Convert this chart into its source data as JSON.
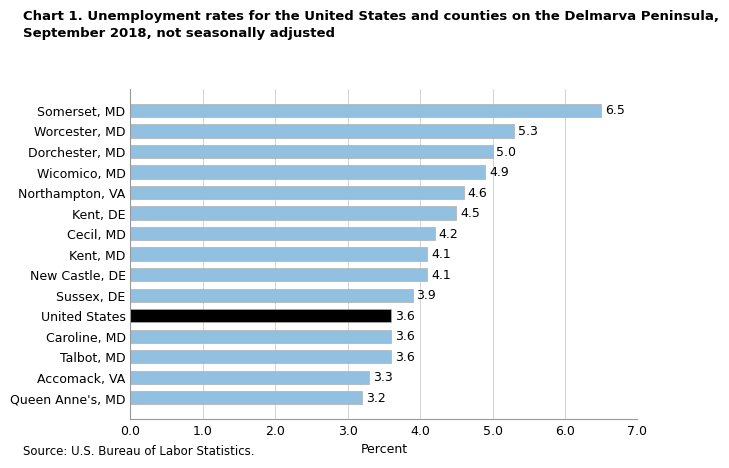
{
  "title_line1": "Chart 1. Unemployment rates for the United States and counties on the Delmarva Peninsula,",
  "title_line2": "September 2018, not seasonally adjusted",
  "categories": [
    "Queen Anne's, MD",
    "Accomack, VA",
    "Talbot, MD",
    "Caroline, MD",
    "United States",
    "Sussex, DE",
    "New Castle, DE",
    "Kent, MD",
    "Cecil, MD",
    "Kent, DE",
    "Northampton, VA",
    "Wicomico, MD",
    "Dorchester, MD",
    "Worcester, MD",
    "Somerset, MD"
  ],
  "values": [
    3.2,
    3.3,
    3.6,
    3.6,
    3.6,
    3.9,
    4.1,
    4.1,
    4.2,
    4.5,
    4.6,
    4.9,
    5.0,
    5.3,
    6.5
  ],
  "bar_colors": [
    "#92c0e0",
    "#92c0e0",
    "#92c0e0",
    "#92c0e0",
    "#000000",
    "#92c0e0",
    "#92c0e0",
    "#92c0e0",
    "#92c0e0",
    "#92c0e0",
    "#92c0e0",
    "#92c0e0",
    "#92c0e0",
    "#92c0e0",
    "#92c0e0"
  ],
  "us_index": 4,
  "xlabel": "Percent",
  "xlim": [
    0,
    7.0
  ],
  "xticks": [
    0.0,
    1.0,
    2.0,
    3.0,
    4.0,
    5.0,
    6.0,
    7.0
  ],
  "source": "Source: U.S. Bureau of Labor Statistics.",
  "title_fontsize": 9.5,
  "label_fontsize": 9,
  "value_fontsize": 9,
  "source_fontsize": 8.5,
  "bar_edge_color": "#b0b0b0",
  "grid_color": "#cccccc",
  "background_color": "#ffffff"
}
